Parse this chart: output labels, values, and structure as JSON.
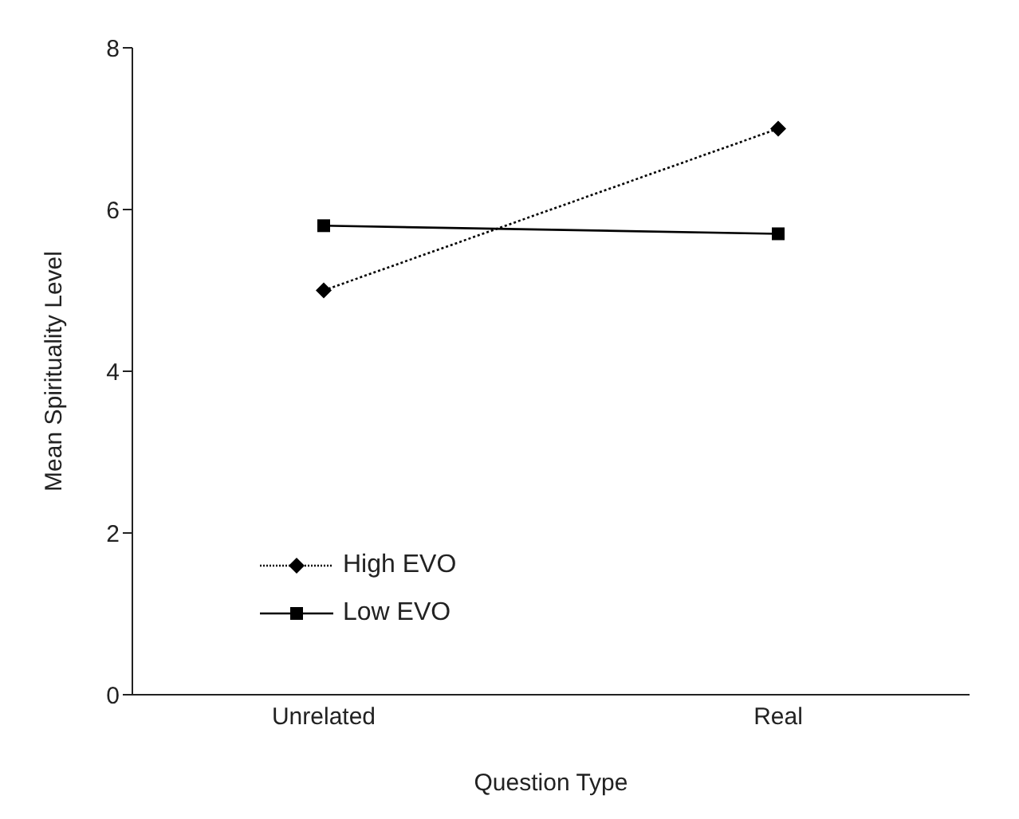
{
  "chart_data": {
    "type": "line",
    "xlabel": "Question Type",
    "ylabel": "Mean Spirituality Level",
    "categories": [
      "Unrelated",
      "Real"
    ],
    "series": [
      {
        "name": "High EVO",
        "color": "#000000",
        "values": [
          5.0,
          7.0
        ],
        "marker": "diamond",
        "line_style": "dotted"
      },
      {
        "name": "Low EVO",
        "color": "#000000",
        "values": [
          5.8,
          5.7
        ],
        "marker": "square",
        "line_style": "solid"
      }
    ],
    "ylim": [
      0,
      8
    ],
    "yticks": [
      0,
      2,
      4,
      6,
      8
    ],
    "grid": false,
    "legend": "bottom left"
  }
}
